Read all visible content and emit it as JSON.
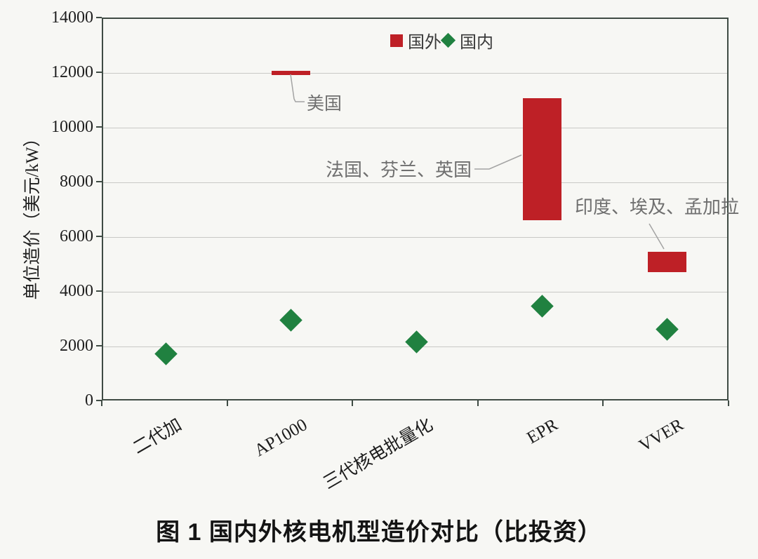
{
  "figure": {
    "caption": "图 1  国内外核电机型造价对比（比投资）"
  },
  "colors": {
    "foreign_red": "#be2026",
    "domestic_green": "#208140",
    "axis_border": "#3f4b44",
    "gridline": "#c9c9c6",
    "annotation_gray": "#6f6f6f",
    "leader_line": "#a3a3a3",
    "background": "#f7f7f4"
  },
  "chart_data": {
    "type": "bar",
    "subtype": "floating-range-bars-with-diamond-scatter",
    "title": "",
    "xlabel": "",
    "ylabel": "单位造价（美元/kW）",
    "ylim": [
      0,
      14000
    ],
    "ytick_step": 2000,
    "ytick_labels": [
      "0",
      "2000",
      "4000",
      "6000",
      "8000",
      "10000",
      "12000",
      "14000"
    ],
    "grid": true,
    "legend_position": "top-center",
    "categories": [
      "二代加",
      "AP1000",
      "三代核电批量化",
      "EPR",
      "VVER"
    ],
    "legend": [
      {
        "name": "国外",
        "marker": "square",
        "color": "#be2026"
      },
      {
        "name": "国内",
        "marker": "diamond",
        "color": "#208140"
      }
    ],
    "series": [
      {
        "name": "国外",
        "type": "floating-bar",
        "color": "#be2026",
        "ranges": [
          null,
          [
            11950,
            12100
          ],
          null,
          [
            6650,
            11100
          ],
          [
            4750,
            5500
          ]
        ]
      },
      {
        "name": "国内",
        "type": "scatter-diamond",
        "color": "#208140",
        "values": [
          1750,
          3000,
          2200,
          3500,
          2650
        ]
      }
    ],
    "annotations": [
      {
        "text": "美国",
        "category": "AP1000",
        "refers_to": "国外"
      },
      {
        "text": "法国、芬兰、英国",
        "category": "EPR",
        "refers_to": "国外"
      },
      {
        "text": "印度、埃及、孟加拉",
        "category": "VVER",
        "refers_to": "国外"
      }
    ]
  }
}
